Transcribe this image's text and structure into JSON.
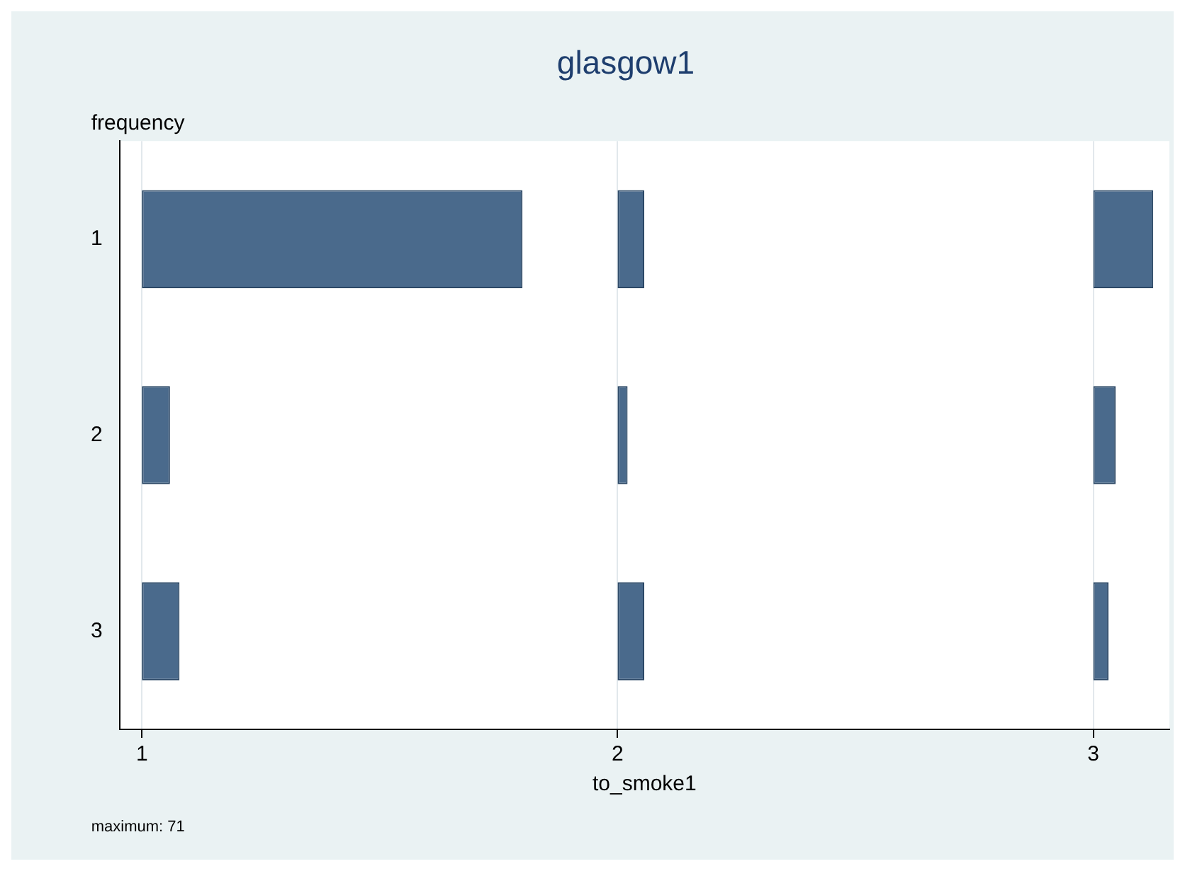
{
  "chart_data": {
    "type": "bar",
    "orientation": "horizontal",
    "title": "glasgow1",
    "xlabel": "to_smoke1",
    "ylabel": "frequency",
    "categories": [
      "1",
      "2",
      "3"
    ],
    "series": [
      {
        "color": "#4a6a8c",
        "base": [
          1,
          1,
          1
        ],
        "values": [
          0.8,
          0.059,
          0.079
        ]
      },
      {
        "color": "#4a6a8c",
        "base": [
          2,
          2,
          2
        ],
        "values": [
          0.056,
          0.021,
          0.056
        ]
      },
      {
        "color": "#4a6a8c",
        "base": [
          3,
          3,
          3
        ],
        "values": [
          0.126,
          0.047,
          0.032
        ]
      }
    ],
    "xlim": [
      0.953,
      3.16
    ],
    "xticks": [
      1,
      2,
      3
    ],
    "grid": "x",
    "legend": false,
    "annotations": [
      "maximum: 71"
    ]
  }
}
